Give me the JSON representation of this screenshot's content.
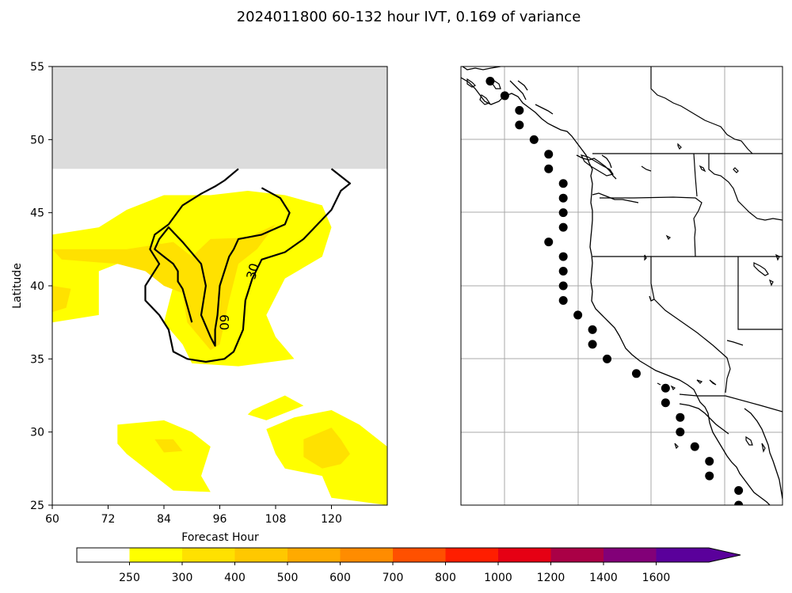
{
  "figure": {
    "title": "2024011800 60-132 hour IVT, 0.169 of variance"
  },
  "chart_data": [
    {
      "type": "heatmap",
      "panel": "left",
      "xlabel": "Forecast Hour",
      "ylabel": "Latitude",
      "xlim": [
        60,
        132
      ],
      "ylim": [
        25,
        55
      ],
      "xticks": [
        "60",
        "72",
        "84",
        "96",
        "108",
        "120"
      ],
      "yticks": [
        "25",
        "30",
        "35",
        "40",
        "45",
        "50",
        "55"
      ],
      "no_data_region": {
        "lat_min": 48,
        "lat_max": 55,
        "color": "#dcdcdc"
      },
      "filled_contours": [
        {
          "level": "250-300",
          "color": "#ffff00",
          "polygons": [
            [
              [
                60,
                43.5
              ],
              [
                70,
                44
              ],
              [
                76,
                45.2
              ],
              [
                84,
                46.2
              ],
              [
                94,
                46.2
              ],
              [
                102,
                46.5
              ],
              [
                110,
                46.2
              ],
              [
                118,
                45.5
              ],
              [
                120,
                44
              ],
              [
                118,
                42
              ],
              [
                110,
                40.5
              ],
              [
                106,
                38
              ],
              [
                108,
                36.5
              ],
              [
                112,
                35
              ],
              [
                100,
                34.5
              ],
              [
                90,
                34.7
              ],
              [
                88,
                36
              ],
              [
                84,
                37.5
              ],
              [
                86,
                40
              ],
              [
                82,
                41.5
              ],
              [
                74,
                41.5
              ],
              [
                70,
                41
              ],
              [
                70,
                38
              ],
              [
                60,
                37.5
              ]
            ],
            [
              [
                103,
                31.5
              ],
              [
                110,
                32.5
              ],
              [
                114,
                31.8
              ],
              [
                106,
                30.8
              ],
              [
                102,
                31.2
              ]
            ],
            [
              [
                74,
                30.5
              ],
              [
                84,
                30.8
              ],
              [
                90,
                30
              ],
              [
                94,
                29
              ],
              [
                92,
                27
              ],
              [
                94,
                25.9
              ],
              [
                86,
                26
              ],
              [
                82,
                27
              ],
              [
                76,
                28.5
              ],
              [
                74,
                29.2
              ]
            ],
            [
              [
                106,
                30.2
              ],
              [
                112,
                31
              ],
              [
                120,
                31.5
              ],
              [
                126,
                30.5
              ],
              [
                132,
                29
              ],
              [
                132,
                25
              ],
              [
                120,
                25.5
              ],
              [
                118,
                27
              ],
              [
                110,
                27.5
              ],
              [
                108,
                28.5
              ]
            ]
          ]
        },
        {
          "level": "300-400",
          "color": "#ffe100",
          "polygons": [
            [
              [
                60,
                42.5
              ],
              [
                76,
                42.5
              ],
              [
                86,
                43
              ],
              [
                90,
                42
              ],
              [
                94,
                43.2
              ],
              [
                102,
                43.3
              ],
              [
                108,
                44.2
              ],
              [
                104,
                42.5
              ],
              [
                100,
                41.5
              ],
              [
                98,
                39
              ],
              [
                96,
                36
              ],
              [
                94,
                35.6
              ],
              [
                89,
                37.5
              ],
              [
                88,
                39.5
              ],
              [
                84,
                40
              ],
              [
                80,
                41
              ],
              [
                74,
                41.5
              ],
              [
                62,
                41.8
              ]
            ],
            [
              [
                60,
                40
              ],
              [
                64,
                39.8
              ],
              [
                63,
                38.5
              ],
              [
                60,
                38.2
              ]
            ],
            [
              [
                82,
                29.5
              ],
              [
                86,
                29.5
              ],
              [
                88,
                28.7
              ],
              [
                84,
                28.6
              ]
            ],
            [
              [
                114,
                29.5
              ],
              [
                120,
                30.3
              ],
              [
                122,
                29.5
              ],
              [
                124,
                28.5
              ],
              [
                122,
                27.8
              ],
              [
                118,
                27.5
              ],
              [
                114,
                28.3
              ]
            ]
          ]
        }
      ],
      "contour_lines": [
        {
          "label": "30",
          "points": [
            [
              100,
              48
            ],
            [
              97,
              47.2
            ],
            [
              95,
              46.8
            ],
            [
              92,
              46.3
            ],
            [
              88,
              45.5
            ],
            [
              85,
              44.2
            ],
            [
              82,
              43.5
            ],
            [
              81,
              42.5
            ],
            [
              83,
              41.5
            ],
            [
              80,
              40
            ],
            [
              80,
              39
            ],
            [
              83,
              38
            ],
            [
              85,
              37
            ],
            [
              86,
              35.5
            ],
            [
              89,
              35
            ],
            [
              93,
              34.8
            ],
            [
              97,
              35
            ],
            [
              99,
              35.5
            ],
            [
              101,
              37
            ],
            [
              101.5,
              39
            ],
            [
              103,
              40.5
            ],
            [
              105,
              41.8
            ],
            [
              110,
              42.3
            ],
            [
              114,
              43.2
            ],
            [
              120,
              45.2
            ],
            [
              122,
              46.5
            ],
            [
              124,
              47
            ],
            [
              120,
              48
            ]
          ],
          "label_position": [
            103,
            41
          ]
        },
        {
          "label": "60",
          "points": [
            [
              105,
              46.7
            ],
            [
              109,
              46
            ],
            [
              111,
              45
            ],
            [
              110,
              44.2
            ],
            [
              105,
              43.5
            ],
            [
              100,
              43.2
            ],
            [
              99,
              42.5
            ],
            [
              98,
              42
            ],
            [
              96,
              40
            ],
            [
              95.5,
              38
            ],
            [
              95,
              37
            ],
            [
              95,
              35.9
            ],
            [
              94,
              36.5
            ],
            [
              92,
              38
            ],
            [
              93,
              40
            ],
            [
              92,
              41.5
            ],
            [
              88,
              43
            ],
            [
              85,
              44
            ],
            [
              83,
              43.2
            ],
            [
              82,
              42.5
            ],
            [
              84,
              42
            ],
            [
              86,
              41.5
            ],
            [
              87,
              41
            ],
            [
              87,
              40.3
            ],
            [
              88,
              39.8
            ],
            [
              90,
              37.5
            ]
          ],
          "label_position": [
            97,
            37.5
          ]
        }
      ]
    },
    {
      "type": "map",
      "panel": "right",
      "features": [
        "coastlines",
        "state-borders",
        "country-borders",
        "gridlines"
      ],
      "markers": [
        [
          -129.0,
          54.0
        ],
        [
          -128.0,
          53.0
        ],
        [
          -127.0,
          52.0
        ],
        [
          -127.0,
          51.0
        ],
        [
          -126.0,
          50.0
        ],
        [
          -125.0,
          49.0
        ],
        [
          -125.0,
          48.0
        ],
        [
          -124.0,
          47.0
        ],
        [
          -124.0,
          46.0
        ],
        [
          -124.0,
          45.0
        ],
        [
          -124.0,
          44.0
        ],
        [
          -125.0,
          43.0
        ],
        [
          -124.0,
          42.0
        ],
        [
          -124.0,
          41.0
        ],
        [
          -124.0,
          40.0
        ],
        [
          -124.0,
          39.0
        ],
        [
          -123.0,
          38.0
        ],
        [
          -122.0,
          37.0
        ],
        [
          -122.0,
          36.0
        ],
        [
          -121.0,
          35.0
        ],
        [
          -119.0,
          34.0
        ],
        [
          -117.0,
          33.0
        ],
        [
          -117.0,
          32.0
        ],
        [
          -116.0,
          31.0
        ],
        [
          -116.0,
          30.0
        ],
        [
          -115.0,
          29.0
        ],
        [
          -114.0,
          28.0
        ],
        [
          -114.0,
          27.0
        ],
        [
          -112.0,
          26.0
        ],
        [
          -112.0,
          25.0
        ]
      ]
    }
  ],
  "colorbar": {
    "ticks": [
      "250",
      "300",
      "400",
      "500",
      "600",
      "700",
      "800",
      "1000",
      "1200",
      "1400",
      "1600"
    ],
    "colors": [
      "#ffffff",
      "#ffff00",
      "#ffe100",
      "#ffc800",
      "#ffaa00",
      "#ff8c00",
      "#ff5000",
      "#ff1e00",
      "#e60014",
      "#aa0046",
      "#820078",
      "#5a009b"
    ]
  }
}
